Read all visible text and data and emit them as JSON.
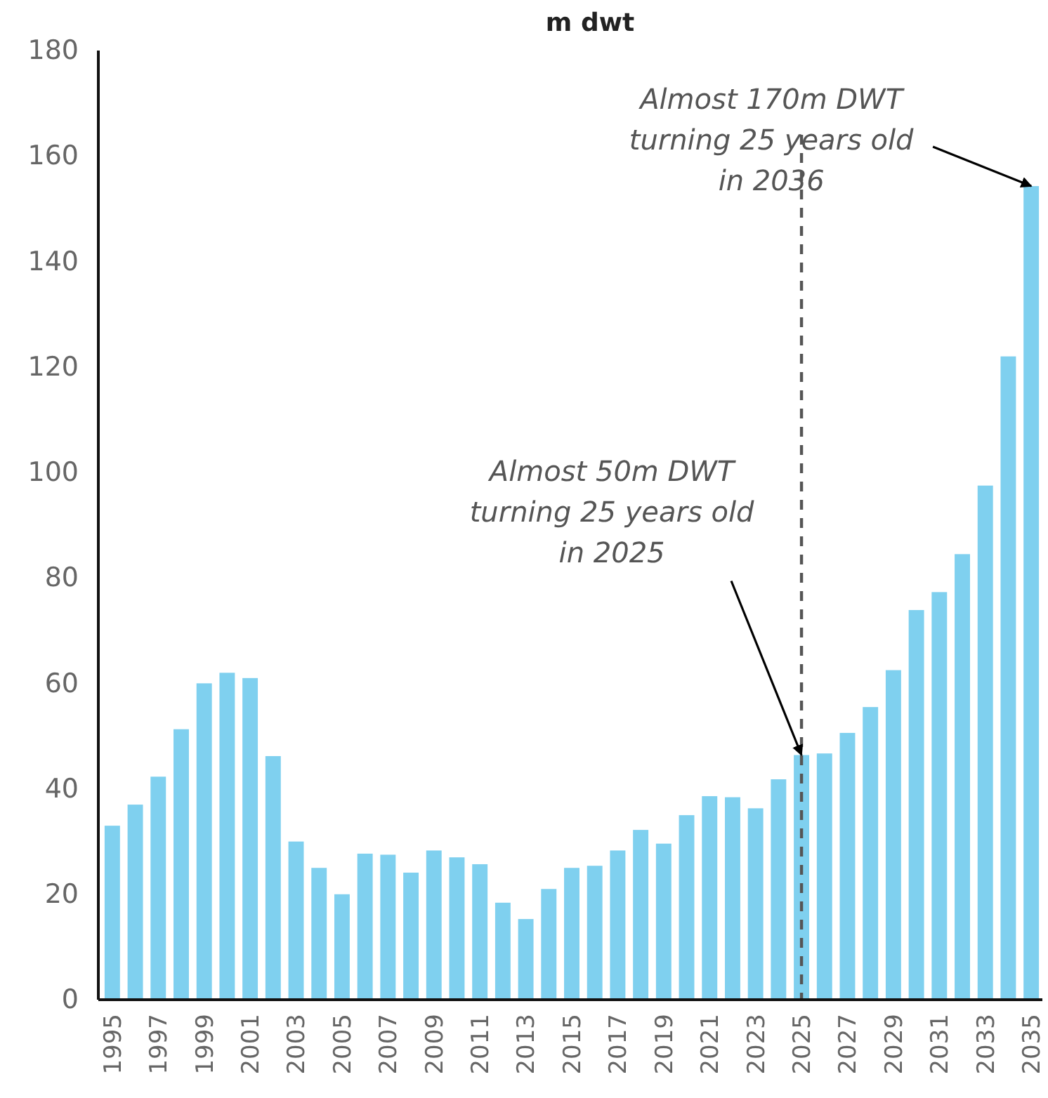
{
  "chart_data": {
    "type": "bar",
    "title": "m dwt",
    "categories": [
      "1995",
      null,
      "1997",
      null,
      "1999",
      null,
      "2001",
      null,
      "2003",
      null,
      "2005",
      null,
      "2007",
      null,
      "2009",
      null,
      "2011",
      null,
      "2013",
      null,
      "2015",
      null,
      "2017",
      null,
      "2019",
      null,
      "2021",
      null,
      "2023",
      null,
      "2025",
      null,
      "2027",
      null,
      "2029",
      null,
      "2031",
      null,
      "2033",
      null,
      "2035"
    ],
    "values": [
      33,
      37,
      42.3,
      51.3,
      60,
      62,
      61,
      46.2,
      30,
      25,
      20,
      27.7,
      27.5,
      24.1,
      28.3,
      27,
      25.7,
      18.4,
      15.3,
      21,
      25,
      25.4,
      28.3,
      32.2,
      29.6,
      35,
      38.6,
      38.4,
      36.3,
      41.8,
      46.4,
      46.7,
      50.6,
      55.5,
      62.5,
      73.9,
      77.3,
      84.5,
      97.5,
      122,
      154.3
    ],
    "color": "#7fd0ef",
    "ylim": [
      0,
      180
    ],
    "yticks": [
      0,
      20,
      40,
      60,
      80,
      100,
      120,
      140,
      160,
      180
    ],
    "grid": false,
    "ref_lines": [
      {
        "axis": "x",
        "value": "2025",
        "line_style": "dashed",
        "color": "#555555"
      }
    ],
    "annotations": [
      {
        "text": "Almost 50m DWT\nturning 25 years old\nin 2025",
        "x": "2025",
        "y": 46.4
      },
      {
        "text": "Almost 170m DWT\nturning 25 years old\nin 2036",
        "x": "2035",
        "y": 154.3
      }
    ]
  }
}
